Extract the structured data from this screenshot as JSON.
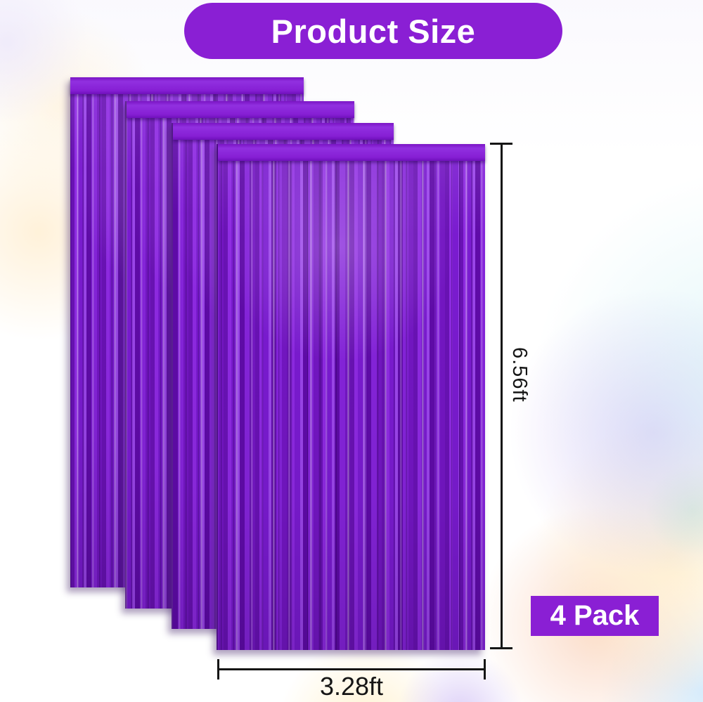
{
  "title_banner": {
    "label": "Product Size"
  },
  "product": {
    "name": "purple metallic foil fringe curtains",
    "panel_count": 4
  },
  "dimensions": {
    "height": {
      "label": "6.56ft"
    },
    "width": {
      "label": "3.28ft"
    }
  },
  "pack_badge": {
    "label": "4 Pack"
  },
  "colors": {
    "accent": "#8a1fd4",
    "curtain_base": "#7d1ccd",
    "line": "#151515"
  }
}
